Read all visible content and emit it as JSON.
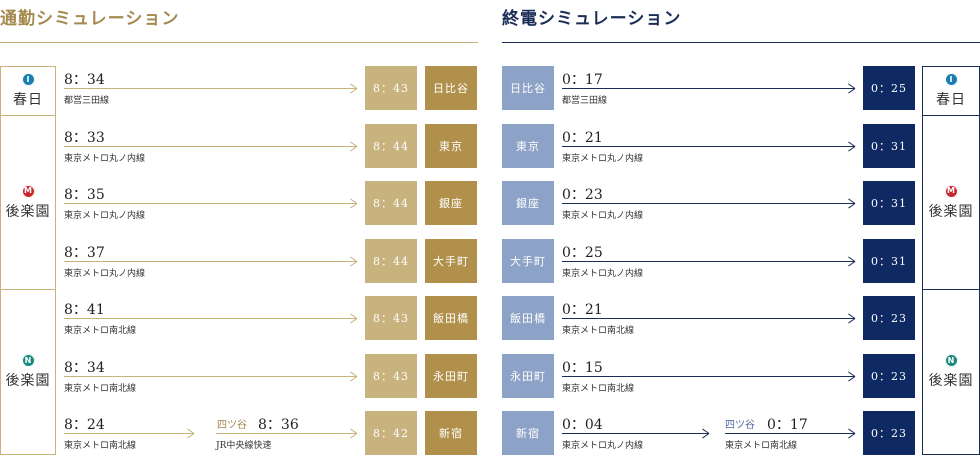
{
  "commute": {
    "title": "通勤シミュレーション",
    "stations": [
      {
        "name": "春日",
        "icon": "toei-mita-line-icon",
        "icon_char": "I",
        "icon_color": "#1b7cb1"
      },
      {
        "name": "後楽園",
        "icon": "marunouchi-line-icon",
        "icon_char": "M",
        "icon_color": "#c8262e"
      },
      {
        "name": "後楽園",
        "icon": "namboku-line-icon",
        "icon_char": "N",
        "icon_color": "#17887b"
      }
    ],
    "rows": [
      {
        "depart": "8：34",
        "line": "都営三田線",
        "arrive": "8：43",
        "dest": "日比谷"
      },
      {
        "depart": "8：33",
        "line": "東京メトロ丸ノ内線",
        "arrive": "8：44",
        "dest": "東京"
      },
      {
        "depart": "8：35",
        "line": "東京メトロ丸ノ内線",
        "arrive": "8：44",
        "dest": "銀座"
      },
      {
        "depart": "8：37",
        "line": "東京メトロ丸ノ内線",
        "arrive": "8：44",
        "dest": "大手町"
      },
      {
        "depart": "8：41",
        "line": "東京メトロ南北線",
        "arrive": "8：43",
        "dest": "飯田橋"
      },
      {
        "depart": "8：34",
        "line": "東京メトロ南北線",
        "arrive": "8：43",
        "dest": "永田町"
      },
      {
        "depart": "8：24",
        "line": "東京メトロ南北線",
        "via_station": "四ツ谷",
        "via_time": "8：36",
        "via_line": "JR中央線快速",
        "arrive": "8：42",
        "dest": "新宿"
      }
    ]
  },
  "last_train": {
    "title": "終電シミュレーション",
    "stations": [
      {
        "name": "春日",
        "icon": "toei-mita-line-icon",
        "icon_char": "I",
        "icon_color": "#1b7cb1"
      },
      {
        "name": "後楽園",
        "icon": "marunouchi-line-icon",
        "icon_char": "M",
        "icon_color": "#c8262e"
      },
      {
        "name": "後楽園",
        "icon": "namboku-line-icon",
        "icon_char": "N",
        "icon_color": "#17887b"
      }
    ],
    "rows": [
      {
        "origin": "日比谷",
        "depart": "0：17",
        "line": "都営三田線",
        "arrive": "0：25"
      },
      {
        "origin": "東京",
        "depart": "0：21",
        "line": "東京メトロ丸ノ内線",
        "arrive": "0：31"
      },
      {
        "origin": "銀座",
        "depart": "0：23",
        "line": "東京メトロ丸ノ内線",
        "arrive": "0：31"
      },
      {
        "origin": "大手町",
        "depart": "0：25",
        "line": "東京メトロ丸ノ内線",
        "arrive": "0：31"
      },
      {
        "origin": "飯田橋",
        "depart": "0：21",
        "line": "東京メトロ南北線",
        "arrive": "0：23"
      },
      {
        "origin": "永田町",
        "depart": "0：15",
        "line": "東京メトロ南北線",
        "arrive": "0：23"
      },
      {
        "origin": "新宿",
        "depart": "0：04",
        "line": "東京メトロ丸ノ内線",
        "via_station": "四ツ谷",
        "via_time": "0：17",
        "via_line": "東京メトロ南北線",
        "arrive": "0：23"
      }
    ]
  },
  "colors": {
    "gold": "#c9b17a",
    "gold_dark": "#b0904a",
    "navy": "#0f2a63",
    "light_blue": "#8ca2c6"
  }
}
